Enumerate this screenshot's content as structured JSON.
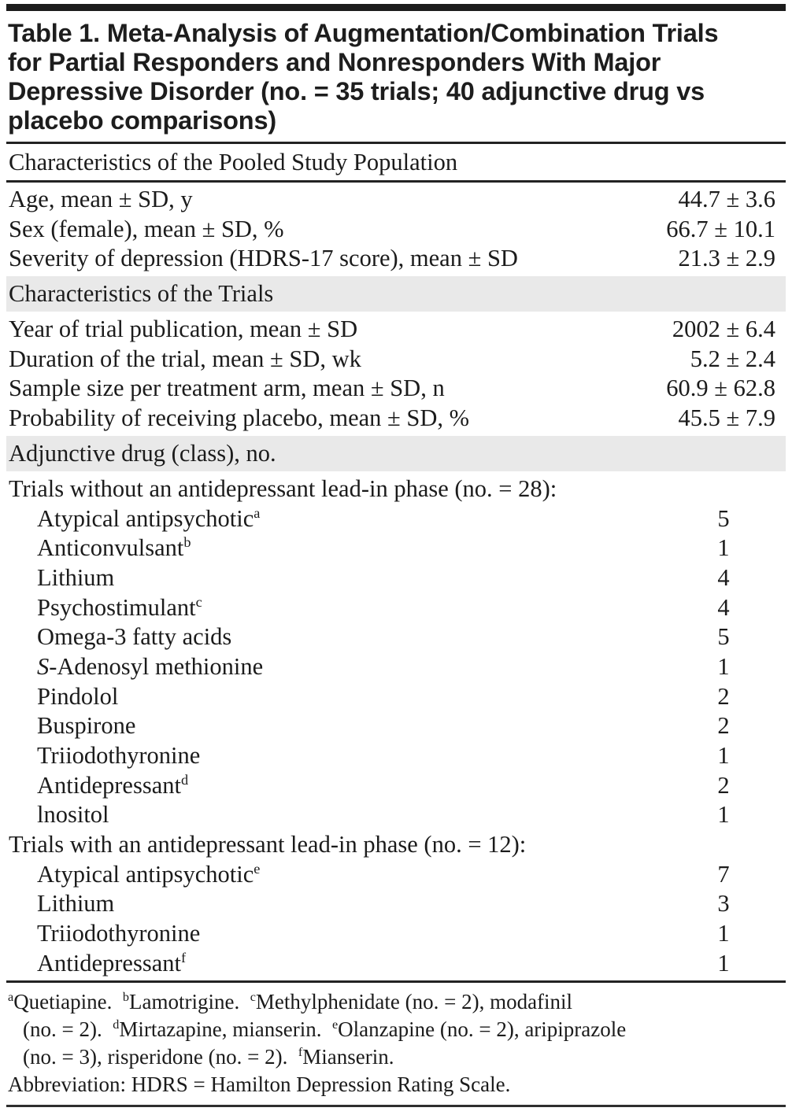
{
  "table": {
    "title_lines": [
      "Table 1. Meta-Analysis of Augmentation/Combination Trials",
      "for Partial Responders and Nonresponders With Major",
      "Depressive Disorder (no. = 35 trials; 40 adjunctive drug vs",
      "placebo comparisons)"
    ],
    "section_headers": {
      "pooled": "Characteristics of the Pooled Study Population",
      "trials": "Characteristics of the Trials",
      "adjunctive": "Adjunctive drug (class), no."
    },
    "pooled_rows": [
      {
        "label": "Age, mean ± SD, y",
        "value": "44.7 ± 3.6"
      },
      {
        "label": "Sex (female), mean ± SD, %",
        "value": "66.7 ± 10.1"
      },
      {
        "label": "Severity of depression (HDRS-17 score), mean ± SD",
        "value": "21.3 ± 2.9"
      }
    ],
    "trial_rows": [
      {
        "label": "Year of trial publication, mean ± SD",
        "value": "2002 ± 6.4"
      },
      {
        "label": "Duration of the trial, mean ± SD, wk",
        "value": "5.2 ± 2.4"
      },
      {
        "label": "Sample size per treatment arm, mean ± SD, n",
        "value": "60.9 ± 62.8"
      },
      {
        "label": "Probability of receiving placebo, mean ± SD, %",
        "value": "45.5 ± 7.9"
      }
    ],
    "adjunctive_rows": [
      {
        "type": "group",
        "label": "Trials without an antidepressant lead-in phase (no. = 28):"
      },
      {
        "label": "Atypical antipsychotic",
        "sup": "a",
        "value": "5",
        "indent": true
      },
      {
        "label": "Anticonvulsant",
        "sup": "b",
        "value": "1",
        "indent": true
      },
      {
        "label": "Lithium",
        "value": "4",
        "indent": true
      },
      {
        "label": "Psychostimulant",
        "sup": "c",
        "value": "4",
        "indent": true
      },
      {
        "label": "Omega-3 fatty acids",
        "value": "5",
        "indent": true
      },
      {
        "italic_prefix": "S",
        "label": "-Adenosyl methionine",
        "value": "1",
        "indent": true
      },
      {
        "label": "Pindolol",
        "value": "2",
        "indent": true
      },
      {
        "label": "Buspirone",
        "value": "2",
        "indent": true
      },
      {
        "label": "Triiodothyronine",
        "value": "1",
        "indent": true
      },
      {
        "label": "Antidepressant",
        "sup": "d",
        "value": "2",
        "indent": true
      },
      {
        "label": "lnositol",
        "value": "1",
        "indent": true
      },
      {
        "type": "group",
        "label": "Trials with an antidepressant lead-in phase (no. = 12):"
      },
      {
        "label": "Atypical antipsychotic",
        "sup": "e",
        "value": "7",
        "indent": true
      },
      {
        "label": "Lithium",
        "value": "3",
        "indent": true
      },
      {
        "label": "Triiodothyronine",
        "value": "1",
        "indent": true
      },
      {
        "label": "Antidepressant",
        "sup": "f",
        "value": "1",
        "indent": true
      }
    ],
    "footnote_lines": [
      {
        "hang": false,
        "segments": [
          {
            "sup": "a"
          },
          {
            "t": "Quetiapine.  "
          },
          {
            "sup": "b"
          },
          {
            "t": "Lamotrigine.  "
          },
          {
            "sup": "c"
          },
          {
            "t": "Methylphenidate (no. = 2), modafinil"
          }
        ]
      },
      {
        "hang": true,
        "segments": [
          {
            "t": "(no. = 2).  "
          },
          {
            "sup": "d"
          },
          {
            "t": "Mirtazapine, mianserin.  "
          },
          {
            "sup": "e"
          },
          {
            "t": "Olanzapine (no. = 2), aripiprazole"
          }
        ]
      },
      {
        "hang": true,
        "segments": [
          {
            "t": "(no. = 3), risperidone (no. = 2).  "
          },
          {
            "sup": "f"
          },
          {
            "t": "Mianserin."
          }
        ]
      },
      {
        "hang": false,
        "segments": [
          {
            "t": "Abbreviation: HDRS = Hamilton Depression Rating Scale."
          }
        ]
      }
    ],
    "colors": {
      "top_bar": "#1c1c1c",
      "rule": "#222222",
      "shaded_row_bg": "#e9e9e9",
      "text": "#1b1b1b"
    }
  }
}
